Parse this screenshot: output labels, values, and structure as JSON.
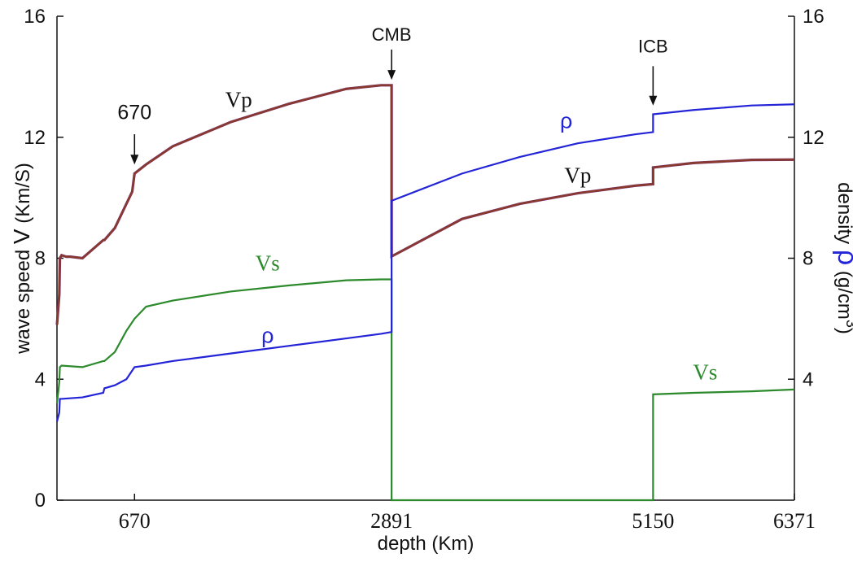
{
  "chart_data": {
    "type": "line",
    "title": "",
    "xlabel": "depth  (Km)",
    "ylabel_left": {
      "prefix": "wave speed ",
      "symbol": "V",
      "suffix": " (Km/S)"
    },
    "ylabel_right": {
      "prefix": "density ",
      "symbol": "ρ",
      "suffix": " (g/cm",
      "superscript": "3",
      "close": ")"
    },
    "xlim": [
      0,
      6371
    ],
    "ylim": [
      0,
      16
    ],
    "x_ticks": [
      {
        "value": 670,
        "label": "670"
      },
      {
        "value": 2891,
        "label": "2891"
      },
      {
        "value": 5150,
        "label": "5150"
      },
      {
        "value": 6371,
        "label": "6371"
      }
    ],
    "y_ticks_left": [
      {
        "value": 0,
        "label": "0"
      },
      {
        "value": 4,
        "label": "4"
      },
      {
        "value": 8,
        "label": "8"
      },
      {
        "value": 12,
        "label": "12"
      },
      {
        "value": 16,
        "label": "16"
      }
    ],
    "y_ticks_right": [
      {
        "value": 4,
        "label": "4"
      },
      {
        "value": 8,
        "label": "8"
      },
      {
        "value": 12,
        "label": "12"
      },
      {
        "value": 16,
        "label": "16"
      }
    ],
    "series": [
      {
        "key": "vp",
        "color": "#8a3a2a",
        "x": [
          0,
          20,
          25,
          40,
          80,
          115,
          220,
          400,
          410,
          500,
          650,
          670,
          770,
          1000,
          1500,
          2000,
          2500,
          2800,
          2891,
          2891,
          3500,
          4000,
          4500,
          5000,
          5150,
          5150,
          5500,
          6000,
          6371
        ],
        "y": [
          5.8,
          6.8,
          8.0,
          8.1,
          8.05,
          8.05,
          8.0,
          8.6,
          8.6,
          9.0,
          10.2,
          10.8,
          11.1,
          11.7,
          12.5,
          13.1,
          13.6,
          13.72,
          13.72,
          8.06,
          9.3,
          9.8,
          10.15,
          10.4,
          10.45,
          11.0,
          11.15,
          11.25,
          11.26
        ],
        "colors": [
          "#8a3a2a",
          "#7a2f6a"
        ]
      },
      {
        "key": "vs",
        "color": "#2c8a2c",
        "x": [
          0,
          20,
          25,
          40,
          220,
          400,
          410,
          500,
          600,
          670,
          770,
          1000,
          1500,
          2000,
          2500,
          2800,
          2891,
          2891,
          5150,
          5150,
          5500,
          6000,
          6371
        ],
        "y": [
          3.2,
          3.9,
          4.4,
          4.45,
          4.4,
          4.6,
          4.6,
          4.9,
          5.6,
          6.0,
          6.4,
          6.6,
          6.9,
          7.1,
          7.27,
          7.3,
          7.3,
          0,
          0,
          3.5,
          3.55,
          3.6,
          3.66
        ],
        "colors": [
          "#2c8a2c"
        ]
      },
      {
        "key": "rho",
        "color": "#2323d8",
        "x": [
          0,
          20,
          25,
          40,
          220,
          400,
          410,
          500,
          600,
          670,
          770,
          1000,
          1500,
          2000,
          2500,
          2800,
          2891,
          2891,
          3500,
          4000,
          4500,
          5000,
          5150,
          5150,
          5500,
          6000,
          6371
        ],
        "y": [
          2.6,
          2.9,
          3.35,
          3.35,
          3.4,
          3.55,
          3.7,
          3.8,
          4.0,
          4.4,
          4.45,
          4.6,
          4.85,
          5.1,
          5.35,
          5.5,
          5.56,
          9.9,
          10.8,
          11.35,
          11.8,
          12.1,
          12.17,
          12.76,
          12.9,
          13.05,
          13.09
        ],
        "colors": [
          "#2323d8"
        ]
      }
    ],
    "annotations": [
      {
        "key": "lbl-670",
        "text": "670",
        "x": 670,
        "y": 12.6,
        "color": "#111111",
        "serif": false,
        "size": 25
      },
      {
        "key": "lbl-cmb",
        "text": "CMB",
        "x": 2891,
        "y": 15.2,
        "color": "#111111",
        "serif": false,
        "size": 22
      },
      {
        "key": "lbl-icb",
        "text": "ICB",
        "x": 5150,
        "y": 14.8,
        "color": "#111111",
        "serif": false,
        "size": 22
      },
      {
        "key": "lbl-vp-mantle",
        "text": "Vp",
        "x": 1570,
        "y": 13.0,
        "color": "#111111",
        "serif": true,
        "size": 27
      },
      {
        "key": "lbl-vs-mantle",
        "text": "Vs",
        "x": 1820,
        "y": 7.6,
        "color": "#2c8a2c",
        "serif": true,
        "size": 27
      },
      {
        "key": "lbl-rho-mantle",
        "text": "ρ",
        "x": 1820,
        "y": 5.2,
        "color": "#2323d8",
        "serif": false,
        "size": 27
      },
      {
        "key": "lbl-rho-core",
        "text": "ρ",
        "x": 4400,
        "y": 12.3,
        "color": "#2323d8",
        "serif": false,
        "size": 27
      },
      {
        "key": "lbl-vp-core",
        "text": "Vp",
        "x": 4500,
        "y": 10.5,
        "color": "#111111",
        "serif": true,
        "size": 27
      },
      {
        "key": "lbl-vs-core",
        "text": "Vs",
        "x": 5600,
        "y": 4.0,
        "color": "#2c8a2c",
        "serif": true,
        "size": 27
      }
    ],
    "arrows": [
      {
        "key": "arrow-670",
        "x": 670,
        "y_from": 12.1,
        "y_to": 11.1
      },
      {
        "key": "arrow-cmb",
        "x": 2891,
        "y_from": 14.9,
        "y_to": 13.9
      },
      {
        "key": "arrow-icb",
        "x": 5150,
        "y_from": 14.35,
        "y_to": 13.05
      }
    ],
    "grid": false
  }
}
